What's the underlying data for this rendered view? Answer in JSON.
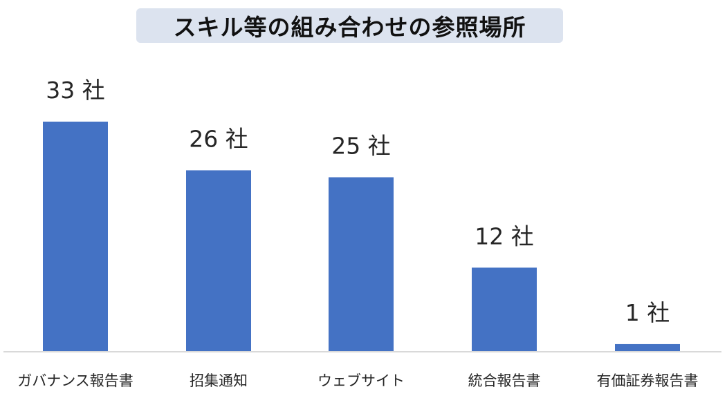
{
  "chart_data": {
    "type": "bar",
    "title": "スキル等の組み合わせの参照場所",
    "categories": [
      "ガバナンス報告書",
      "招集通知",
      "ウェブサイト",
      "統合報告書",
      "有価証券報告書"
    ],
    "values": [
      33,
      26,
      25,
      12,
      1
    ],
    "data_labels": [
      "33 社",
      "26 社",
      "25 社",
      "12 社",
      "1 社"
    ],
    "xlabel": "",
    "ylabel": "",
    "ylim": [
      0,
      33
    ],
    "grid": false,
    "legend": "none",
    "colors": {
      "bar": "#4472c4",
      "axis": "#d9d9d9",
      "text": "#262626",
      "title_bg": "#dce3ef"
    }
  }
}
